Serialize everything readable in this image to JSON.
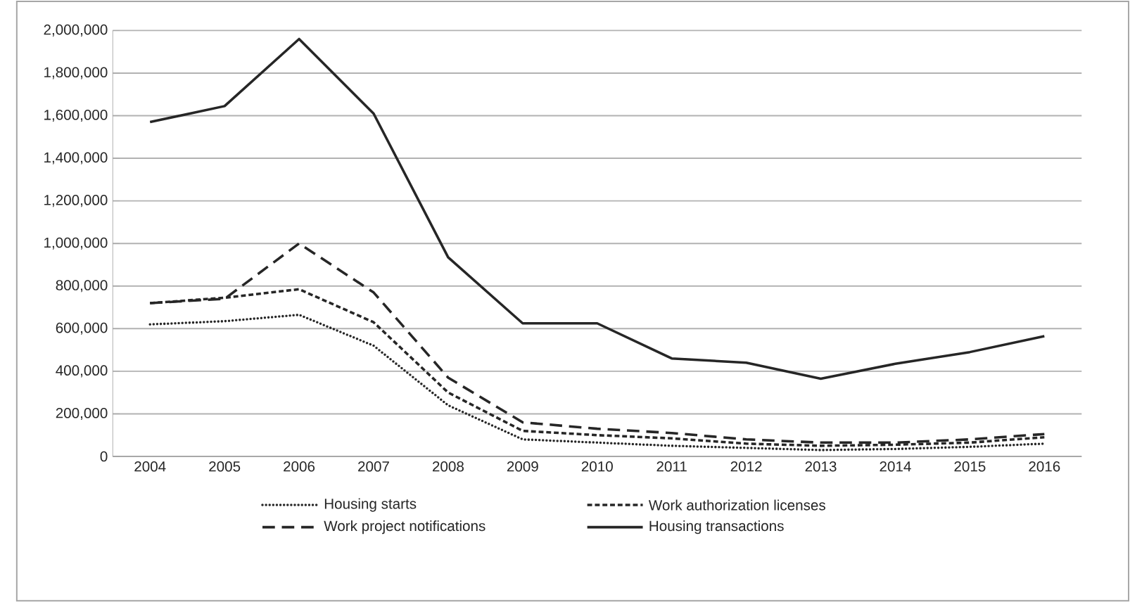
{
  "chart_data": {
    "type": "line",
    "categories": [
      "2004",
      "2005",
      "2006",
      "2007",
      "2008",
      "2009",
      "2010",
      "2011",
      "2012",
      "2013",
      "2014",
      "2015",
      "2016"
    ],
    "series": [
      {
        "name": "Housing starts",
        "color": "#262626",
        "line_style": "dotted",
        "values": [
          620000,
          635000,
          665000,
          520000,
          240000,
          80000,
          65000,
          50000,
          40000,
          30000,
          35000,
          45000,
          60000
        ]
      },
      {
        "name": "Work authorization licenses",
        "color": "#262626",
        "line_style": "dashed",
        "values": [
          720000,
          745000,
          785000,
          630000,
          300000,
          120000,
          100000,
          85000,
          60000,
          50000,
          55000,
          65000,
          90000
        ]
      },
      {
        "name": "Work project notifications",
        "color": "#262626",
        "line_style": "dashed",
        "values": [
          720000,
          740000,
          1000000,
          770000,
          370000,
          160000,
          130000,
          110000,
          80000,
          65000,
          65000,
          80000,
          105000
        ]
      },
      {
        "name": "Housing transactions",
        "color": "#262626",
        "line_style": "solid",
        "values": [
          1570000,
          1645000,
          1960000,
          1610000,
          935000,
          625000,
          625000,
          460000,
          440000,
          365000,
          435000,
          490000,
          565000
        ]
      }
    ],
    "ylim": [
      0,
      2000000
    ],
    "yticks": [
      {
        "value": 0,
        "label": "0"
      },
      {
        "value": 200000,
        "label": "200,000"
      },
      {
        "value": 400000,
        "label": "400,000"
      },
      {
        "value": 600000,
        "label": "600,000"
      },
      {
        "value": 800000,
        "label": "800,000"
      },
      {
        "value": 1000000,
        "label": "1,000,000"
      },
      {
        "value": 1200000,
        "label": "1,200,000"
      },
      {
        "value": 1400000,
        "label": "1,400,000"
      },
      {
        "value": 1600000,
        "label": "1,600,000"
      },
      {
        "value": 1800000,
        "label": "1,800,000"
      },
      {
        "value": 2000000,
        "label": "2,000,000"
      }
    ],
    "grid": "y",
    "legend": "bottom",
    "marker": "none"
  }
}
